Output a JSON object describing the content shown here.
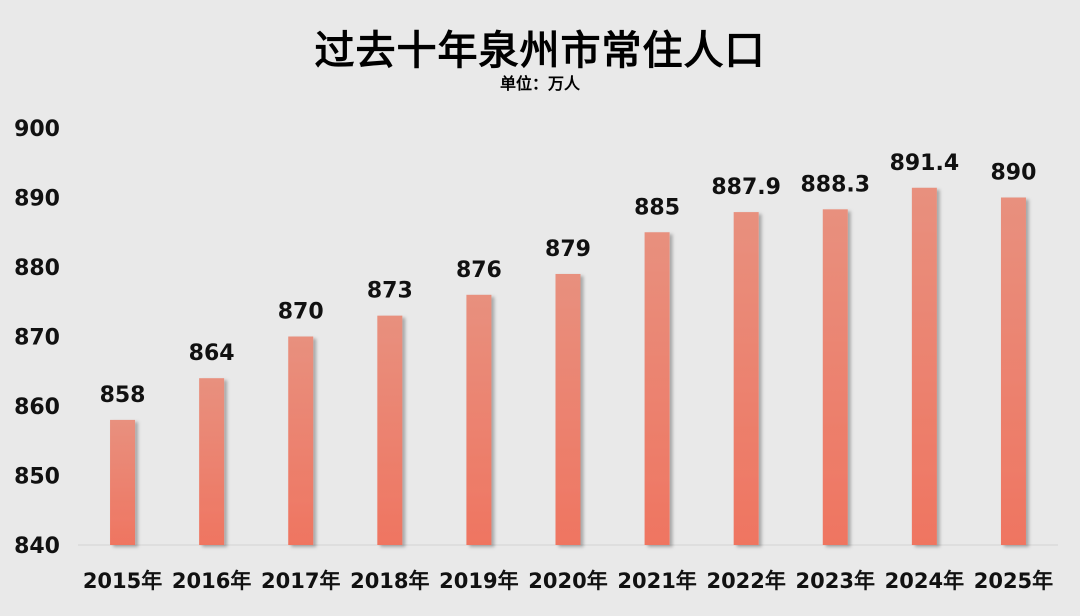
{
  "chart_data": {
    "type": "bar",
    "title": "过去十年泉州市常住人口",
    "subtitle": "单位：万人",
    "categories": [
      "2015年",
      "2016年",
      "2017年",
      "2018年",
      "2019年",
      "2020年",
      "2021年",
      "2022年",
      "2023年",
      "2024年",
      "2025年"
    ],
    "values": [
      858,
      864,
      870,
      873,
      876,
      879,
      885,
      887.9,
      888.3,
      891.4,
      890
    ],
    "data_labels": [
      "858",
      "864",
      "870",
      "873",
      "876",
      "879",
      "885",
      "887.9",
      "888.3",
      "891.4",
      "890"
    ],
    "ylim": [
      840,
      900
    ],
    "yticks": [
      840,
      850,
      860,
      870,
      880,
      890,
      900
    ],
    "grid": false,
    "colors": {
      "bar_top": "#e8907e",
      "bar_bottom": "#ef7561",
      "background": "#e9e9e9"
    }
  }
}
